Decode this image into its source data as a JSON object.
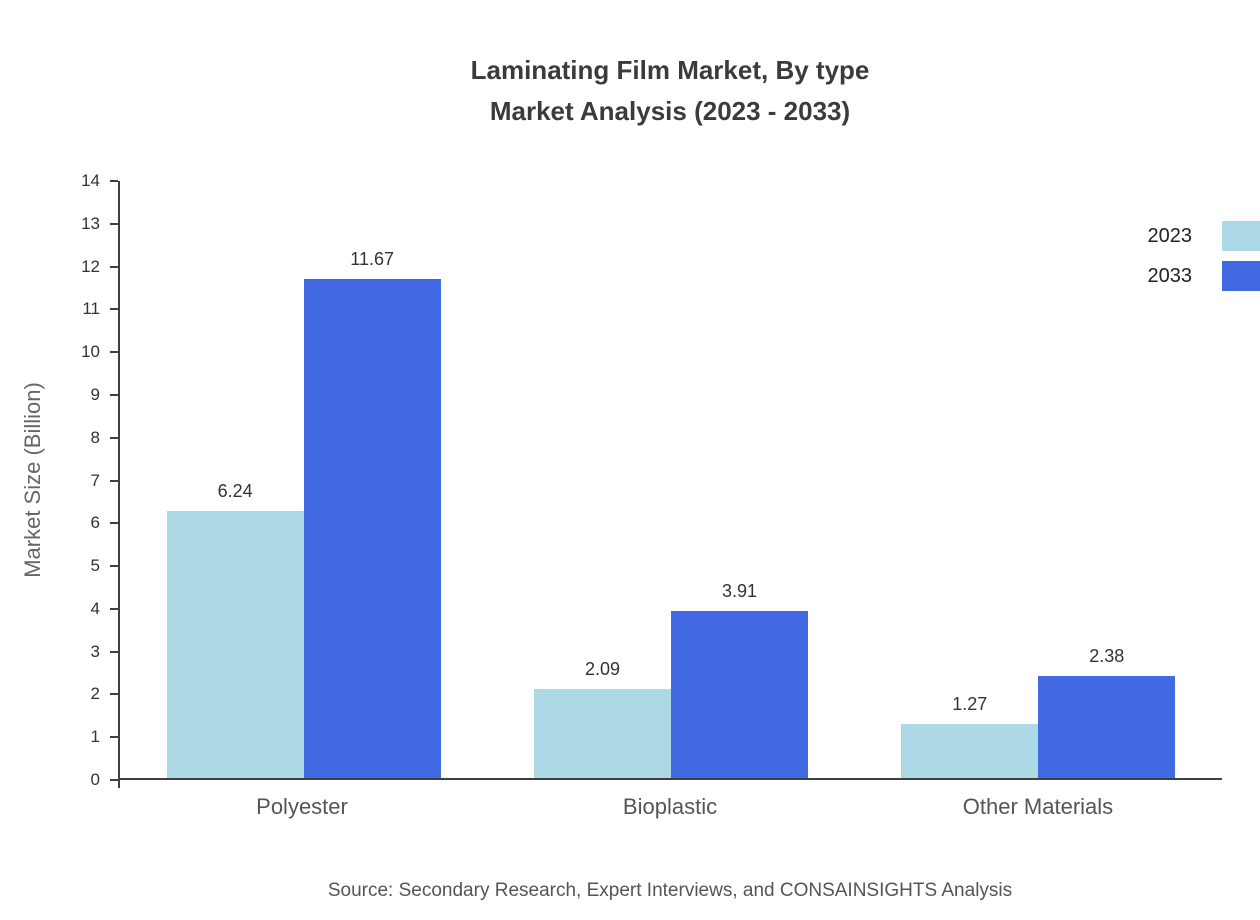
{
  "title": {
    "line1": "Laminating Film Market, By type",
    "line2": "Market Analysis (2023 - 2033)"
  },
  "source": "Source: Secondary Research, Expert Interviews, and CONSAINSIGHTS Analysis",
  "chart_data": {
    "type": "bar",
    "title": "Laminating Film Market, By type - Market Analysis (2023 - 2033)",
    "categories": [
      "Polyester",
      "Bioplastic",
      "Other Materials"
    ],
    "series": [
      {
        "name": "2023",
        "color": "#ADD8E6",
        "values": [
          6.24,
          2.09,
          1.27
        ]
      },
      {
        "name": "2033",
        "color": "#4169E1",
        "values": [
          11.67,
          3.91,
          2.38
        ]
      }
    ],
    "xlabel": "",
    "ylabel": "Market Size (Billion)",
    "ylim": [
      0,
      14
    ],
    "ytick_step": 1,
    "grid": false,
    "legend_position": "top-right",
    "value_labels": true
  }
}
